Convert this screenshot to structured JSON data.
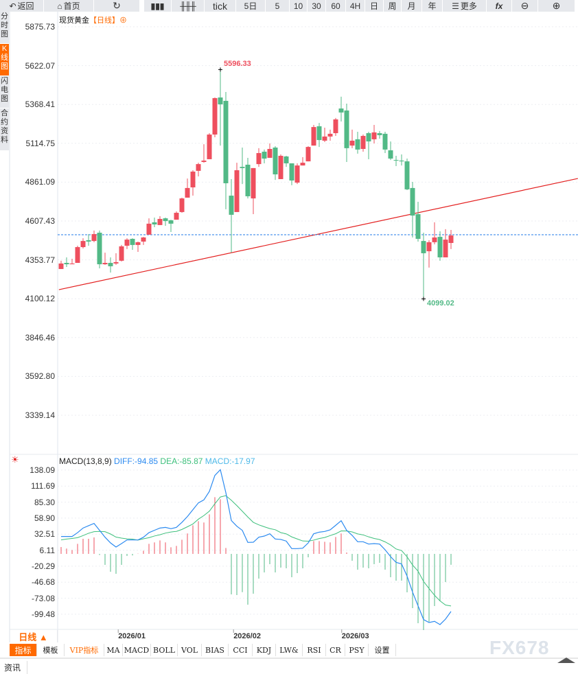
{
  "toolbar": {
    "back": "返回",
    "home": "首页",
    "tick": "tick",
    "d5": "5日",
    "m5": "5",
    "m10": "10",
    "m30": "30",
    "m60": "60",
    "h4": "4H",
    "day": "日",
    "week": "周",
    "month": "月",
    "year": "年",
    "more": "更多",
    "fx": "fx"
  },
  "sidebar": [
    "分时图",
    "K线图",
    "闪电图",
    "合约资料"
  ],
  "chart_title": {
    "name": "现货黄金",
    "period": "【日线】",
    "icon": "⊕"
  },
  "colors": {
    "up": "#ee4f5e",
    "down": "#52b986",
    "diff": "#2b8af0",
    "dea": "#3cbf7b",
    "trend": "#e31e1e",
    "hline": "#1f7ae8",
    "accent": "#ff6a00"
  },
  "chart_data": [
    {
      "type": "candlestick",
      "title": "现货黄金【日线】",
      "yticks": [
        "5875.73",
        "5622.07",
        "5368.41",
        "5114.75",
        "4861.09",
        "4607.43",
        "4353.77",
        "4100.12",
        "3846.46",
        "3592.80",
        "3339.14"
      ],
      "ylim": [
        3339.14,
        5875.73
      ],
      "xlabels": [
        {
          "label": "2026/01",
          "index": 10.4
        },
        {
          "label": "2026/02",
          "index": 31.4
        },
        {
          "label": "2026/03",
          "index": 51.1
        }
      ],
      "high_label": "5596.33",
      "low_label": "4099.02",
      "reference_price": 4518,
      "trendline": {
        "from": [
          -0.4,
          4159
        ],
        "to": [
          94.1,
          4885
        ]
      },
      "ohlc": [
        [
          4294,
          4348,
          4294,
          4330
        ],
        [
          4334,
          4370,
          4307,
          4325
        ],
        [
          4325,
          4361,
          4325,
          4330
        ],
        [
          4334,
          4446,
          4334,
          4437
        ],
        [
          4437,
          4495,
          4428,
          4477
        ],
        [
          4482,
          4522,
          4446,
          4473
        ],
        [
          4477,
          4545,
          4469,
          4522
        ],
        [
          4531,
          4545,
          4298,
          4325
        ],
        [
          4325,
          4401,
          4321,
          4334
        ],
        [
          4334,
          4370,
          4271,
          4312
        ],
        [
          4330,
          4397,
          4321,
          4339
        ],
        [
          4348,
          4451,
          4343,
          4442
        ],
        [
          4446,
          4495,
          4424,
          4486
        ],
        [
          4491,
          4495,
          4419,
          4451
        ],
        [
          4451,
          4473,
          4406,
          4469
        ],
        [
          4473,
          4504,
          4451,
          4500
        ],
        [
          4518,
          4625,
          4518,
          4590
        ],
        [
          4599,
          4630,
          4567,
          4585
        ],
        [
          4581,
          4639,
          4581,
          4621
        ],
        [
          4625,
          4630,
          4576,
          4607
        ],
        [
          4612,
          4616,
          4536,
          4590
        ],
        [
          4616,
          4670,
          4616,
          4661
        ],
        [
          4666,
          4760,
          4661,
          4755
        ],
        [
          4760,
          4885,
          4760,
          4823
        ],
        [
          4827,
          4939,
          4773,
          4930
        ],
        [
          4935,
          4988,
          4899,
          4979
        ],
        [
          4993,
          5109,
          4988,
          5002
        ],
        [
          5011,
          5181,
          5011,
          5172
        ],
        [
          5172,
          5414,
          5154,
          5410
        ],
        [
          5414,
          5596.33,
          5100,
          5369
        ],
        [
          5392,
          5450,
          4684,
          4854
        ],
        [
          4773,
          4881,
          4401,
          4648
        ],
        [
          4666,
          4988,
          4666,
          4939
        ],
        [
          4961,
          5087,
          4849,
          4953
        ],
        [
          4975,
          5020,
          4755,
          4769
        ],
        [
          4755,
          4953,
          4652,
          4953
        ],
        [
          4979,
          5083,
          4961,
          5051
        ],
        [
          5060,
          5074,
          4984,
          5015
        ],
        [
          5020,
          5114,
          5020,
          5078
        ],
        [
          5087,
          5096,
          4876,
          4912
        ],
        [
          4881,
          5042,
          4881,
          5033
        ],
        [
          5029,
          5033,
          4961,
          4984
        ],
        [
          4984,
          4984,
          4841,
          4872
        ],
        [
          4858,
          4984,
          4849,
          4970
        ],
        [
          4970,
          5024,
          4970,
          4988
        ],
        [
          4997,
          5096,
          4997,
          5091
        ],
        [
          5100,
          5235,
          5100,
          5221
        ],
        [
          5226,
          5248,
          5091,
          5136
        ],
        [
          5132,
          5217,
          5123,
          5159
        ],
        [
          5159,
          5204,
          5132,
          5177
        ],
        [
          5181,
          5280,
          5163,
          5271
        ],
        [
          5342,
          5419,
          5257,
          5316
        ],
        [
          5329,
          5374,
          4993,
          5083
        ],
        [
          5100,
          5204,
          5083,
          5132
        ],
        [
          5141,
          5190,
          5047,
          5074
        ],
        [
          5078,
          5172,
          5060,
          5163
        ],
        [
          5181,
          5190,
          5011,
          5127
        ],
        [
          5141,
          5235,
          5114,
          5186
        ],
        [
          5181,
          5195,
          5145,
          5168
        ],
        [
          5177,
          5190,
          5051,
          5074
        ],
        [
          5069,
          5127,
          5006,
          5015
        ],
        [
          5006,
          5033,
          4966,
          5002
        ],
        [
          5002,
          5042,
          4970,
          4997
        ],
        [
          4997,
          5015,
          4809,
          4814
        ],
        [
          4823,
          4863,
          4500,
          4643
        ],
        [
          4652,
          4733,
          4473,
          4491
        ],
        [
          4477,
          4531,
          4099.02,
          4397
        ],
        [
          4410,
          4482,
          4303,
          4469
        ],
        [
          4469,
          4599,
          4455,
          4500
        ],
        [
          4504,
          4540,
          4348,
          4370
        ],
        [
          4370,
          4554,
          4370,
          4486
        ],
        [
          4464,
          4549,
          4424,
          4513
        ]
      ]
    },
    {
      "type": "macd",
      "title": "MACD(13,8,9)",
      "legend": {
        "diff": "DIFF:-94.85",
        "dea": "DEA:-85.87",
        "macd": "MACD:-17.97"
      },
      "yticks": [
        "138.09",
        "111.69",
        "85.30",
        "58.90",
        "32.51",
        "6.11",
        "-20.29",
        "-46.68",
        "-73.08",
        "-99.48"
      ],
      "ylim": [
        -99.48,
        138.09
      ],
      "diff": [
        28.7,
        28.7,
        28.7,
        35,
        42.6,
        46.4,
        50.2,
        38.9,
        27.5,
        18.1,
        11.3,
        17,
        23,
        23,
        23,
        27.5,
        35,
        38.9,
        42.6,
        43.7,
        41.5,
        43.7,
        52,
        61.5,
        72.8,
        84.1,
        89,
        103,
        129.3,
        138.8,
        101,
        55,
        45.6,
        38.8,
        18.9,
        19.2,
        27.5,
        29.4,
        33.2,
        24.5,
        23.8,
        21.1,
        8.7,
        8.7,
        9.4,
        18.1,
        33.2,
        35.8,
        37,
        39.6,
        47.1,
        54.7,
        38.8,
        30.5,
        20,
        20,
        16.2,
        17,
        16.2,
        6.8,
        -4.5,
        -14,
        -16.6,
        -36.6,
        -63,
        -85.6,
        -108.2,
        -113.1,
        -111.2,
        -116.5,
        -107.5,
        -94.85
      ],
      "dea": [
        23.1,
        24.4,
        25.5,
        26.7,
        30.2,
        34,
        36.6,
        37,
        36.6,
        32.8,
        27.7,
        26,
        24.7,
        24.3,
        22.8,
        24.9,
        26.7,
        29.5,
        31.5,
        34.3,
        36.1,
        37.1,
        40.3,
        44.7,
        49.3,
        57.2,
        63.2,
        70.4,
        82.6,
        93.8,
        96,
        88.4,
        79.6,
        70.3,
        60.8,
        52,
        47.9,
        44.7,
        41.7,
        39.8,
        35.1,
        33,
        28,
        24.6,
        21.3,
        21,
        22.7,
        25.3,
        27,
        30.2,
        33.2,
        37.9,
        37.7,
        36.2,
        33,
        31.3,
        28.1,
        25.5,
        23.6,
        19.8,
        14.8,
        8.1,
        5.5,
        -4.9,
        -18.3,
        -28.5,
        -45.4,
        -57.1,
        -68.2,
        -77.5,
        -84.3,
        -85.87
      ],
      "hist": [
        11.3,
        8.7,
        6.4,
        16.6,
        24.9,
        24.9,
        27.2,
        -1.9,
        -18.1,
        -29.4,
        -32.8,
        -18.1,
        -3.4,
        -2.6,
        0.4,
        5.3,
        16.6,
        18.9,
        22.2,
        18.9,
        10.9,
        13.2,
        23.4,
        33.6,
        47.1,
        53.9,
        51.7,
        65.2,
        93.5,
        90.1,
        9.8,
        -66.7,
        -67.9,
        -63,
        -83.7,
        -65.6,
        -40.7,
        -30.5,
        -17,
        -30.5,
        -22.6,
        -23.8,
        -38.5,
        -31.7,
        -23.8,
        -5.7,
        21.1,
        21.1,
        20,
        18.9,
        27.9,
        33.6,
        2.3,
        -11.3,
        -26,
        -22.6,
        -23.8,
        -17,
        -14.7,
        -26,
        -38.5,
        -44.1,
        -44.1,
        -63.4,
        -89.4,
        -114.3,
        -125.6,
        -112,
        -86,
        -78.1,
        -46.4,
        -17.97
      ]
    }
  ],
  "period_selector": "日线 ▲",
  "indicator_tabs": [
    "指标",
    "模板",
    "VIP指标",
    "MA",
    "MACD",
    "BOLL",
    "VOL",
    "BIAS",
    "CCI",
    "KDJ",
    "LW&",
    "RSI",
    "CR",
    "PSY",
    "设置"
  ],
  "news_tab": "资讯",
  "watermark": "FX678"
}
